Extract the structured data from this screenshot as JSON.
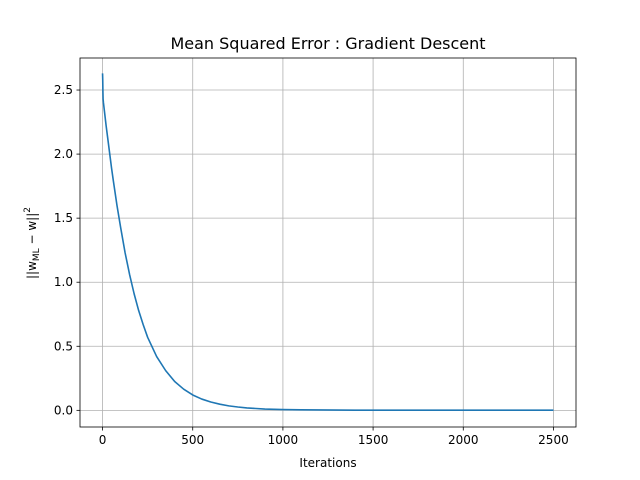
{
  "chart_data": {
    "type": "line",
    "title": "Mean Squared Error : Gradient Descent",
    "xlabel": "Iterations",
    "ylabel_parts": {
      "prefix": "||w",
      "subscript": "ML",
      "middle": " − w||",
      "superscript": "2"
    },
    "xlim": [
      -125,
      2625
    ],
    "ylim": [
      -0.13,
      2.75
    ],
    "xticks": [
      0,
      500,
      1000,
      1500,
      2000,
      2500
    ],
    "yticks": [
      0.0,
      0.5,
      1.0,
      1.5,
      2.0,
      2.5
    ],
    "xtick_labels": [
      "0",
      "500",
      "1000",
      "1500",
      "2000",
      "2500"
    ],
    "ytick_labels": [
      "0.0",
      "0.5",
      "1.0",
      "1.5",
      "2.0",
      "2.5"
    ],
    "grid": true,
    "series": [
      {
        "color": "#1f77b4",
        "x": [
          0,
          1,
          2,
          3,
          5,
          10,
          20,
          30,
          40,
          50,
          60,
          80,
          100,
          125,
          150,
          175,
          200,
          225,
          250,
          300,
          350,
          400,
          450,
          500,
          550,
          600,
          650,
          700,
          750,
          800,
          900,
          1000,
          1100,
          1200,
          1300,
          1400,
          1500,
          1600,
          1700,
          1800,
          1900,
          2000,
          2100,
          2200,
          2300,
          2400,
          2500
        ],
        "y": [
          2.63,
          2.58,
          2.49,
          2.43,
          2.4,
          2.34,
          2.22,
          2.11,
          2.0,
          1.89,
          1.79,
          1.6,
          1.43,
          1.23,
          1.06,
          0.91,
          0.78,
          0.67,
          0.57,
          0.42,
          0.31,
          0.225,
          0.165,
          0.12,
          0.088,
          0.065,
          0.048,
          0.035,
          0.026,
          0.019,
          0.01,
          0.006,
          0.004,
          0.003,
          0.002,
          0.0015,
          0.001,
          0.001,
          0.001,
          0.001,
          0.001,
          0.001,
          0.001,
          0.001,
          0.001,
          0.001,
          0.001
        ]
      }
    ]
  }
}
